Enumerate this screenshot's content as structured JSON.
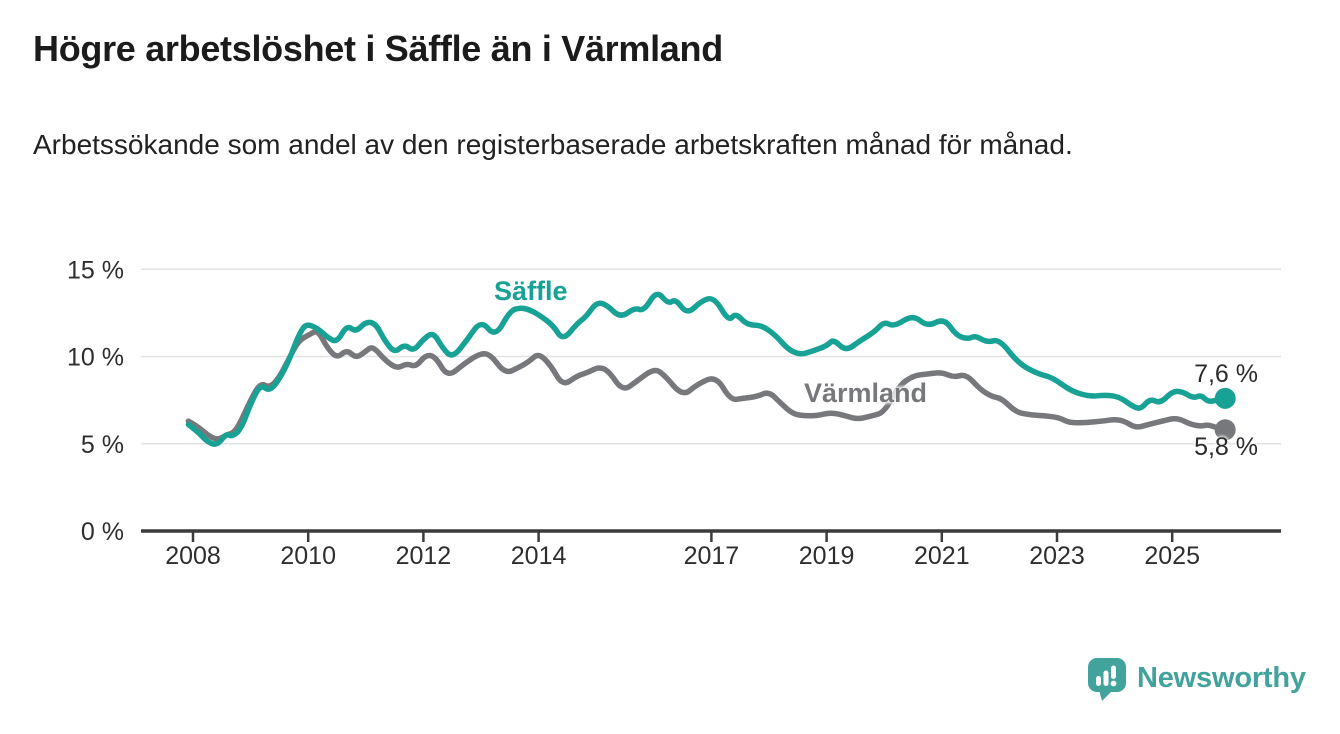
{
  "header": {
    "title": "Högre arbetslöshet i Säffle än i Värmland",
    "subtitle": "Arbetssökande som andel av den registerbaserade arbetskraften månad för månad."
  },
  "chart_data": {
    "type": "line",
    "unit": "%",
    "grid": "horizontal-only",
    "colors": {
      "grid": "#E2E2E2",
      "axis": "#3B3B3B",
      "tick_text": "#2E2E2E"
    },
    "y_axis": {
      "min": 0,
      "max": 15,
      "ticks": [
        {
          "value": 0,
          "label": "0 %"
        },
        {
          "value": 5,
          "label": "5 %"
        },
        {
          "value": 10,
          "label": "10 %"
        },
        {
          "value": 15,
          "label": "15 %"
        }
      ]
    },
    "x_axis": {
      "min": 2007.9,
      "max": 2026,
      "ticks": [
        {
          "year": 2008,
          "label": "2008"
        },
        {
          "year": 2010,
          "label": "2010"
        },
        {
          "year": 2012,
          "label": "2012"
        },
        {
          "year": 2014,
          "label": "2014"
        },
        {
          "year": 2017,
          "label": "2017"
        },
        {
          "year": 2019,
          "label": "2019"
        },
        {
          "year": 2021,
          "label": "2021"
        },
        {
          "year": 2023,
          "label": "2023"
        },
        {
          "year": 2025,
          "label": "2025"
        }
      ]
    },
    "series": [
      {
        "name": "Säffle",
        "color": "#17A295",
        "end_label": "7,6 %",
        "end_value": 7.6,
        "x": [
          2007.92,
          2008.08,
          2008.25,
          2008.42,
          2008.58,
          2008.67,
          2008.83,
          2009.0,
          2009.17,
          2009.33,
          2009.5,
          2009.67,
          2009.83,
          2009.96,
          2010.17,
          2010.33,
          2010.5,
          2010.67,
          2010.83,
          2011.0,
          2011.17,
          2011.33,
          2011.5,
          2011.67,
          2011.83,
          2012.0,
          2012.17,
          2012.33,
          2012.5,
          2012.75,
          2013.0,
          2013.25,
          2013.5,
          2013.67,
          2013.83,
          2014.0,
          2014.25,
          2014.42,
          2014.67,
          2014.83,
          2015.0,
          2015.17,
          2015.42,
          2015.67,
          2015.83,
          2016.05,
          2016.25,
          2016.38,
          2016.58,
          2016.83,
          2017.05,
          2017.3,
          2017.42,
          2017.62,
          2017.87,
          2018.12,
          2018.33,
          2018.54,
          2018.75,
          2019.0,
          2019.12,
          2019.33,
          2019.58,
          2019.83,
          2020.0,
          2020.17,
          2020.5,
          2020.75,
          2021.04,
          2021.25,
          2021.46,
          2021.58,
          2021.79,
          2022.0,
          2022.33,
          2022.67,
          2022.92,
          2023.25,
          2023.58,
          2023.83,
          2024.08,
          2024.33,
          2024.46,
          2024.62,
          2024.79,
          2025.0,
          2025.17,
          2025.37,
          2025.5,
          2025.62,
          2025.79,
          2025.92
        ],
        "values": [
          6.1,
          5.7,
          5.1,
          4.9,
          5.6,
          5.4,
          5.8,
          7.3,
          8.4,
          8.0,
          8.7,
          9.8,
          11.2,
          11.9,
          11.6,
          11.1,
          10.8,
          11.8,
          11.4,
          12.0,
          11.9,
          10.9,
          10.2,
          10.7,
          10.3,
          11.0,
          11.4,
          10.5,
          9.9,
          10.9,
          12.1,
          11.1,
          12.6,
          12.8,
          12.7,
          12.4,
          11.8,
          10.9,
          11.9,
          12.3,
          13.1,
          13.0,
          12.2,
          12.8,
          12.6,
          13.8,
          13.0,
          13.3,
          12.4,
          13.2,
          13.4,
          12.0,
          12.5,
          11.8,
          11.8,
          11.2,
          10.4,
          10.1,
          10.3,
          10.6,
          11.0,
          10.3,
          10.9,
          11.4,
          12.0,
          11.7,
          12.4,
          11.7,
          12.2,
          11.2,
          11.0,
          11.2,
          10.8,
          11.0,
          9.6,
          9.0,
          8.8,
          8.0,
          7.7,
          7.8,
          7.7,
          7.1,
          7.0,
          7.6,
          7.3,
          8.0,
          8.0,
          7.6,
          7.8,
          7.4,
          7.5,
          7.6
        ]
      },
      {
        "name": "Värmland",
        "color": "#77787B",
        "end_label": "5,8 %",
        "end_value": 5.8,
        "x": [
          2007.92,
          2008.08,
          2008.25,
          2008.42,
          2008.58,
          2008.75,
          2009.0,
          2009.17,
          2009.33,
          2009.5,
          2009.67,
          2009.83,
          2010.04,
          2010.17,
          2010.33,
          2010.5,
          2010.67,
          2010.83,
          2011.0,
          2011.12,
          2011.33,
          2011.54,
          2011.71,
          2011.87,
          2012.04,
          2012.21,
          2012.42,
          2012.71,
          2013.0,
          2013.17,
          2013.42,
          2013.67,
          2013.83,
          2014.0,
          2014.21,
          2014.42,
          2014.67,
          2014.87,
          2015.04,
          2015.21,
          2015.46,
          2015.71,
          2016.0,
          2016.17,
          2016.5,
          2016.75,
          2017.08,
          2017.33,
          2017.54,
          2017.79,
          2018.0,
          2018.21,
          2018.42,
          2018.62,
          2018.83,
          2019.08,
          2019.33,
          2019.54,
          2019.79,
          2020.0,
          2020.25,
          2020.5,
          2020.75,
          2021.0,
          2021.21,
          2021.42,
          2021.67,
          2021.87,
          2022.04,
          2022.29,
          2022.54,
          2022.79,
          2023.04,
          2023.21,
          2023.5,
          2023.79,
          2024.0,
          2024.17,
          2024.37,
          2024.58,
          2024.83,
          2025.08,
          2025.33,
          2025.5,
          2025.62,
          2025.79,
          2025.92
        ],
        "values": [
          6.3,
          6.0,
          5.5,
          5.2,
          5.5,
          5.7,
          7.5,
          8.5,
          8.2,
          8.8,
          9.9,
          10.9,
          11.3,
          11.5,
          10.5,
          9.9,
          10.4,
          9.9,
          10.3,
          10.6,
          9.8,
          9.3,
          9.6,
          9.4,
          10.1,
          10.0,
          8.8,
          9.6,
          10.2,
          10.1,
          9.0,
          9.4,
          9.7,
          10.2,
          9.5,
          8.3,
          8.9,
          9.1,
          9.4,
          9.2,
          8.0,
          8.6,
          9.3,
          9.0,
          7.7,
          8.4,
          8.9,
          7.5,
          7.6,
          7.7,
          8.0,
          7.3,
          6.7,
          6.6,
          6.6,
          6.8,
          6.6,
          6.4,
          6.6,
          6.8,
          8.3,
          8.9,
          9.0,
          9.1,
          8.8,
          9.0,
          8.1,
          7.7,
          7.6,
          6.8,
          6.65,
          6.6,
          6.5,
          6.2,
          6.2,
          6.3,
          6.4,
          6.3,
          5.9,
          6.1,
          6.3,
          6.5,
          6.1,
          6.0,
          6.1,
          5.9,
          5.8
        ]
      }
    ]
  },
  "footer": {
    "brand": "Newsworthy",
    "logo_color": "#41A39C"
  }
}
